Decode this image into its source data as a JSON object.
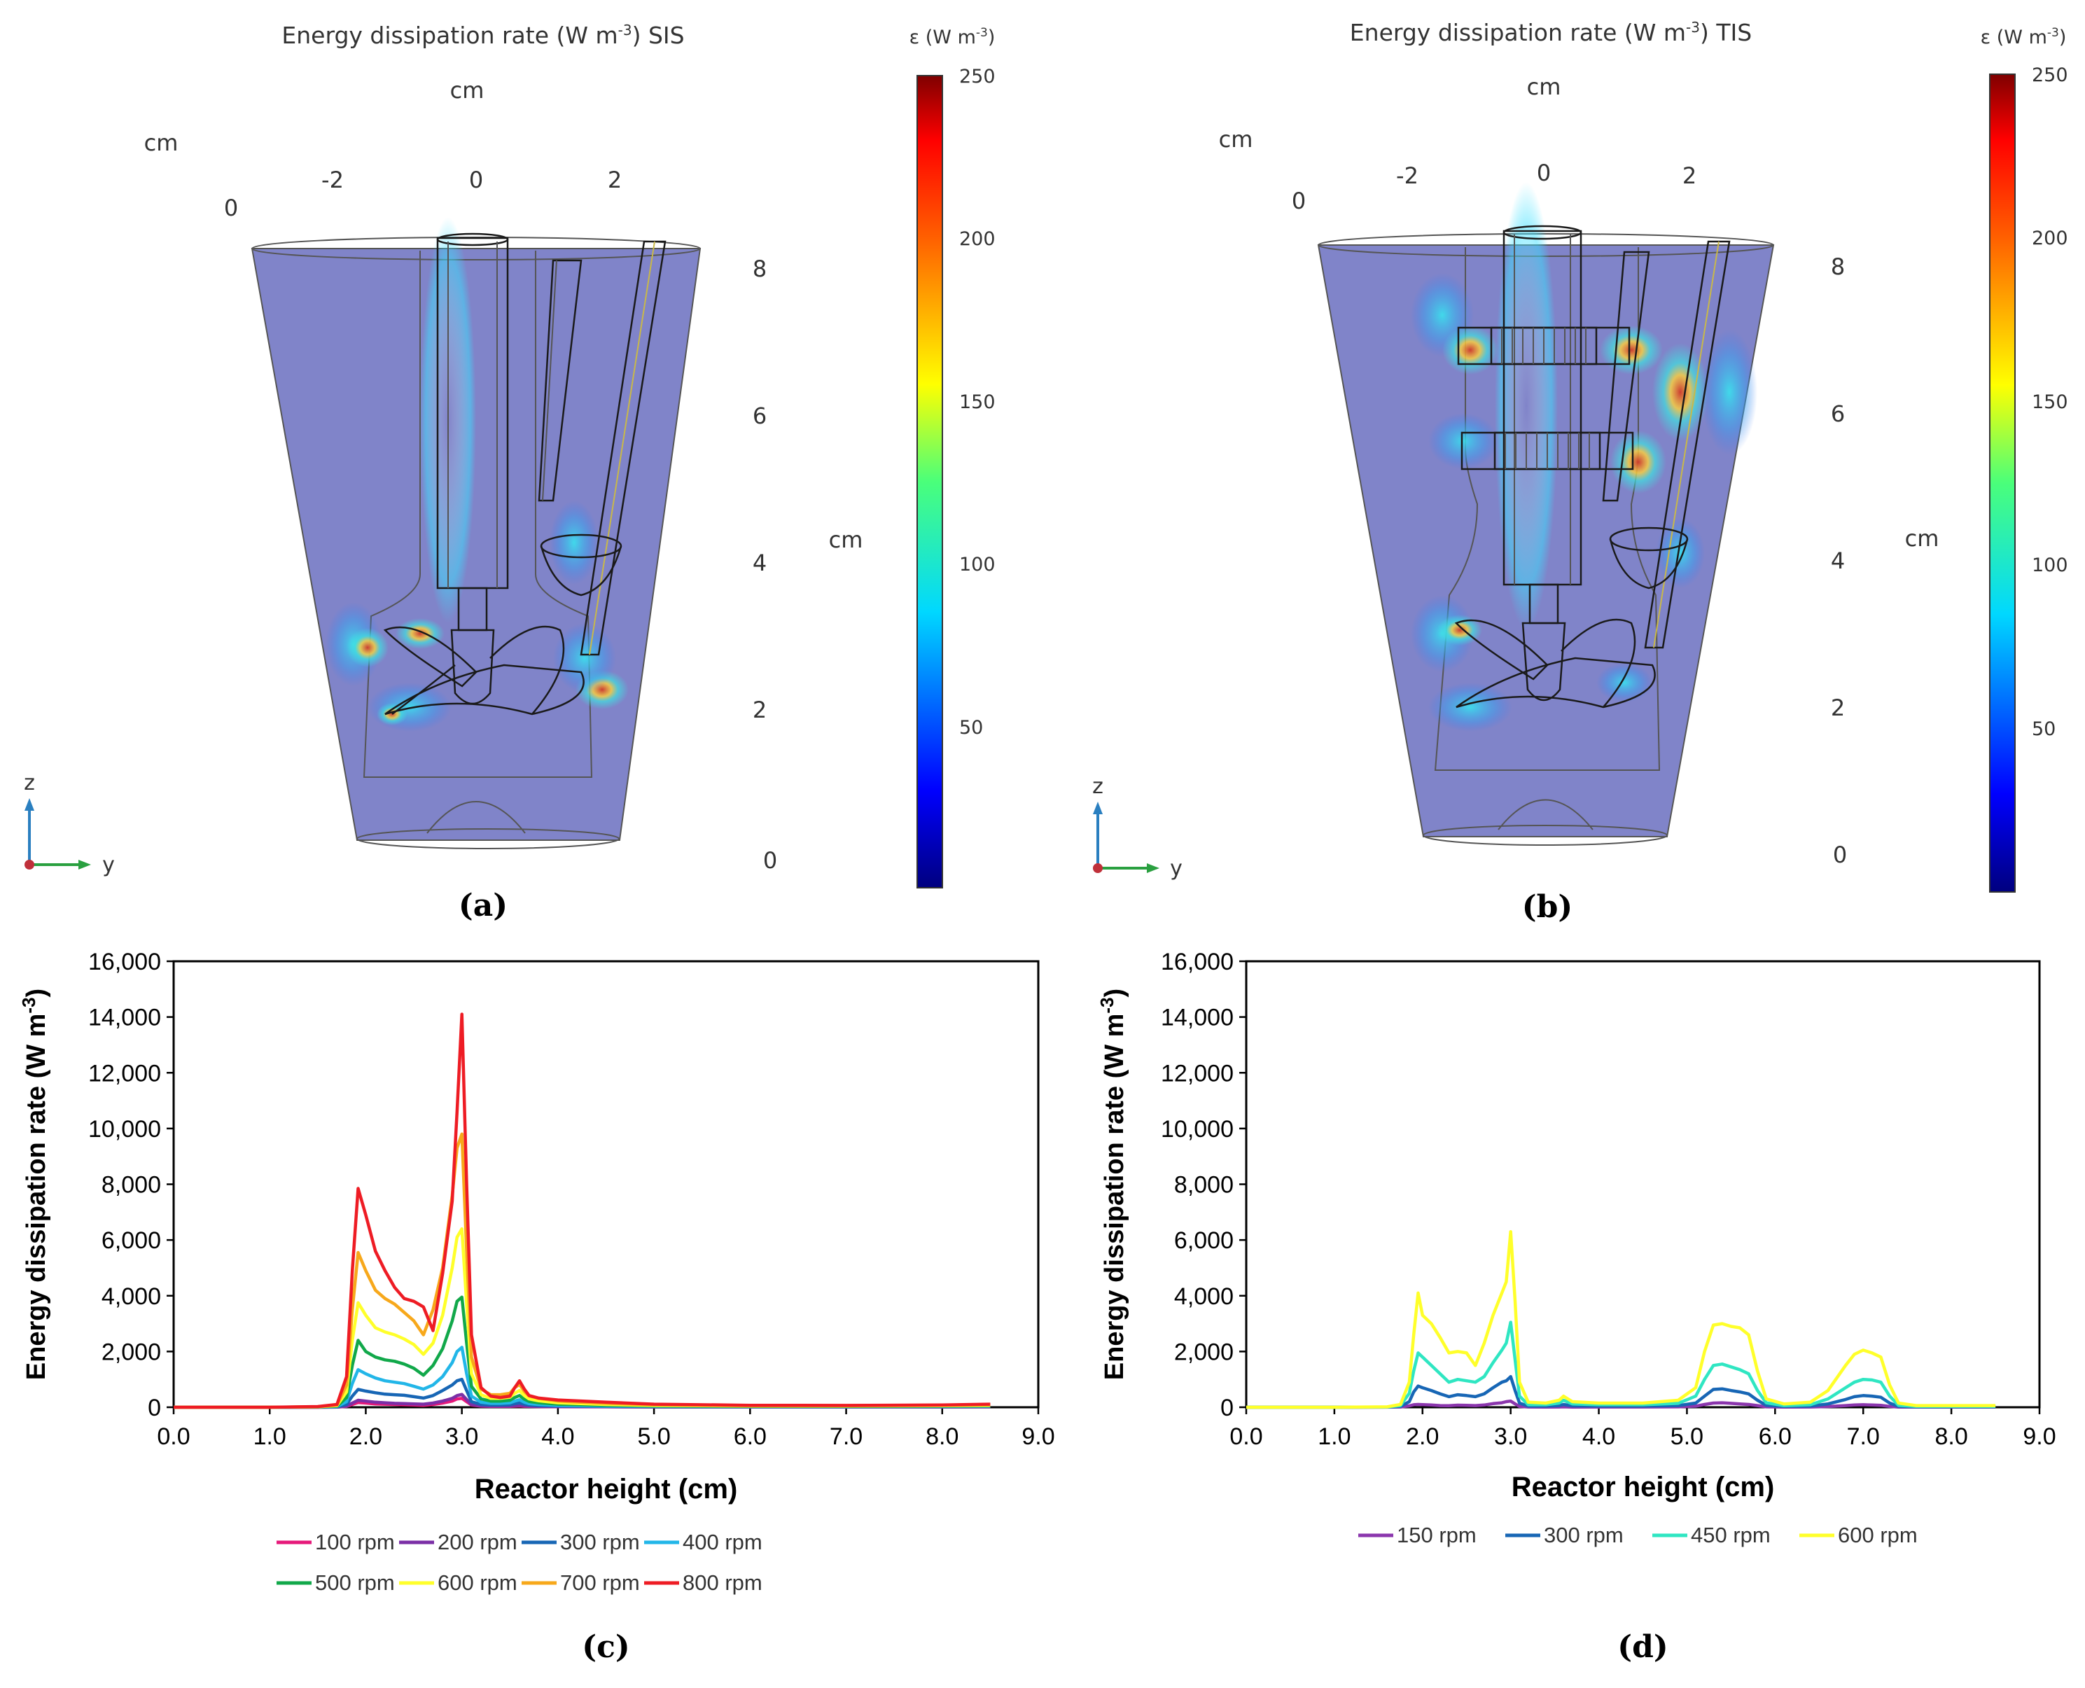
{
  "panel_a": {
    "title": "Energy dissipation rate (W m",
    "title_sup": "-3",
    "title_suffix": ") SIS",
    "colorbar_label": "ε (W m",
    "colorbar_sup": "-3",
    "colorbar_close": ")",
    "colorbar_ticks": [
      "250",
      "200",
      "150",
      "100",
      "50"
    ],
    "unit_top": "cm",
    "unit_left": "cm",
    "unit_right": "cm",
    "y_ticks": [
      "-2",
      "0",
      "2"
    ],
    "x_tick_zero": "0",
    "z_ticks": [
      "8",
      "6",
      "4",
      "2",
      "0"
    ],
    "axis_z": "z",
    "axis_y": "y",
    "panel_label": "(a)"
  },
  "panel_b": {
    "title": "Energy dissipation rate (W m",
    "title_sup": "-3",
    "title_suffix": ") TIS",
    "colorbar_label": "ε (W m",
    "colorbar_sup": "-3",
    "colorbar_close": ")",
    "colorbar_ticks": [
      "250",
      "200",
      "150",
      "100",
      "50"
    ],
    "unit_top": "cm",
    "unit_left": "cm",
    "unit_right": "cm",
    "y_ticks": [
      "-2",
      "0",
      "2"
    ],
    "x_tick_zero": "0",
    "z_ticks": [
      "8",
      "6",
      "4",
      "2",
      "0"
    ],
    "axis_z": "z",
    "axis_y": "y",
    "panel_label": "(b)"
  },
  "colors": {
    "c_100": "#e6197a",
    "c_200": "#7b2fa6",
    "c_300": "#1766b5",
    "c_400": "#22b6e8",
    "c_500": "#11a84a",
    "c_600": "#ffff2a",
    "c_700": "#f7a81b",
    "c_800": "#ee1c24",
    "d_150": "#8b36ad",
    "d_300": "#1766b5",
    "d_450": "#2fe6c2",
    "d_600": "#ffff2a",
    "wall_fill": "#6a6fc0"
  },
  "chart_data": [
    {
      "id": "c",
      "type": "line",
      "panel_label": "(c)",
      "xlabel": "Reactor height (cm)",
      "ylabel": "Energy dissipation rate (W m",
      "ylabel_sup": "-3",
      "ylabel_close": ")",
      "xlim": [
        0,
        9
      ],
      "ylim": [
        0,
        16000
      ],
      "xticks": [
        0,
        1,
        2,
        3,
        4,
        5,
        6,
        7,
        8,
        9
      ],
      "xtick_labels": [
        "0.0",
        "1.0",
        "2.0",
        "3.0",
        "4.0",
        "5.0",
        "6.0",
        "7.0",
        "8.0",
        "9.0"
      ],
      "yticks": [
        0,
        2000,
        4000,
        6000,
        8000,
        10000,
        12000,
        14000,
        16000
      ],
      "ytick_labels": [
        "0",
        "2,000",
        "4,000",
        "6,000",
        "8,000",
        "10,000",
        "12,000",
        "14,000",
        "16,000"
      ],
      "legend_position": "bottom",
      "x": [
        0.0,
        1.0,
        1.5,
        1.7,
        1.8,
        1.86,
        1.92,
        2.0,
        2.1,
        2.2,
        2.3,
        2.4,
        2.5,
        2.6,
        2.7,
        2.8,
        2.9,
        2.95,
        3.0,
        3.05,
        3.1,
        3.2,
        3.3,
        3.4,
        3.5,
        3.55,
        3.6,
        3.65,
        3.7,
        3.8,
        4.0,
        4.5,
        5.0,
        6.0,
        7.0,
        8.0,
        8.5
      ],
      "series": [
        {
          "name": "100 rpm",
          "color": "#e6197a",
          "values": [
            0,
            0,
            0,
            5,
            30,
            100,
            170,
            150,
            120,
            110,
            100,
            90,
            80,
            70,
            100,
            150,
            220,
            300,
            320,
            200,
            80,
            40,
            30,
            30,
            30,
            40,
            50,
            35,
            30,
            25,
            20,
            15,
            10,
            8,
            8,
            10,
            12
          ]
        },
        {
          "name": "200 rpm",
          "color": "#7b2fa6",
          "values": [
            0,
            0,
            0,
            6,
            40,
            150,
            250,
            220,
            180,
            160,
            140,
            130,
            120,
            110,
            150,
            220,
            320,
            420,
            460,
            280,
            100,
            50,
            40,
            40,
            40,
            55,
            70,
            50,
            40,
            30,
            25,
            18,
            12,
            10,
            10,
            12,
            15
          ]
        },
        {
          "name": "300 rpm",
          "color": "#1766b5",
          "values": [
            0,
            0,
            5,
            15,
            100,
            400,
            640,
            580,
            520,
            470,
            450,
            430,
            380,
            330,
            420,
            600,
            800,
            950,
            1000,
            600,
            200,
            100,
            80,
            80,
            90,
            130,
            160,
            110,
            80,
            60,
            45,
            30,
            20,
            15,
            15,
            20,
            25
          ]
        },
        {
          "name": "400 rpm",
          "color": "#22b6e8",
          "values": [
            0,
            0,
            8,
            25,
            200,
            850,
            1350,
            1200,
            1050,
            950,
            900,
            850,
            750,
            650,
            800,
            1100,
            1600,
            2000,
            2150,
            1200,
            400,
            180,
            140,
            140,
            160,
            220,
            270,
            180,
            130,
            100,
            70,
            45,
            30,
            22,
            22,
            28,
            35
          ]
        },
        {
          "name": "500 rpm",
          "color": "#11a84a",
          "values": [
            0,
            0,
            10,
            40,
            350,
            1500,
            2400,
            2000,
            1800,
            1700,
            1650,
            1550,
            1400,
            1150,
            1500,
            2100,
            3100,
            3800,
            3950,
            2300,
            750,
            300,
            220,
            220,
            250,
            350,
            420,
            290,
            210,
            160,
            110,
            70,
            45,
            32,
            32,
            40,
            50
          ]
        },
        {
          "name": "600 rpm",
          "color": "#ffff2a",
          "values": [
            0,
            0,
            15,
            60,
            550,
            2400,
            3750,
            3300,
            2850,
            2700,
            2600,
            2450,
            2250,
            1900,
            2300,
            3300,
            5000,
            6100,
            6400,
            3700,
            1200,
            450,
            320,
            320,
            360,
            500,
            600,
            420,
            300,
            230,
            160,
            100,
            65,
            45,
            45,
            55,
            70
          ]
        },
        {
          "name": "700 rpm",
          "color": "#f7a81b",
          "values": [
            0,
            0,
            20,
            80,
            800,
            3500,
            5550,
            4900,
            4200,
            3900,
            3700,
            3400,
            3100,
            2600,
            3500,
            5000,
            7600,
            9300,
            9800,
            5600,
            1800,
            650,
            450,
            450,
            500,
            700,
            820,
            570,
            410,
            320,
            220,
            140,
            90,
            60,
            60,
            75,
            95
          ]
        },
        {
          "name": "800 rpm",
          "color": "#ee1c24",
          "values": [
            0,
            0,
            25,
            100,
            1100,
            4900,
            7850,
            6900,
            5600,
            4900,
            4300,
            3900,
            3800,
            3600,
            2750,
            4800,
            7400,
            10600,
            14100,
            8000,
            2600,
            700,
            400,
            350,
            400,
            700,
            950,
            650,
            420,
            330,
            260,
            180,
            110,
            70,
            65,
            80,
            110
          ]
        }
      ]
    },
    {
      "id": "d",
      "type": "line",
      "panel_label": "(d)",
      "xlabel": "Reactor height (cm)",
      "ylabel": "Energy dissipation rate (W m",
      "ylabel_sup": "-3",
      "ylabel_close": ")",
      "xlim": [
        0,
        9
      ],
      "ylim": [
        0,
        16000
      ],
      "xticks": [
        0,
        1,
        2,
        3,
        4,
        5,
        6,
        7,
        8,
        9
      ],
      "xtick_labels": [
        "0.0",
        "1.0",
        "2.0",
        "3.0",
        "4.0",
        "5.0",
        "6.0",
        "7.0",
        "8.0",
        "9.0"
      ],
      "yticks": [
        0,
        2000,
        4000,
        6000,
        8000,
        10000,
        12000,
        14000,
        16000
      ],
      "ytick_labels": [
        "0",
        "2,000",
        "4,000",
        "6,000",
        "8,000",
        "10,000",
        "12,000",
        "14,000",
        "16,000"
      ],
      "legend_position": "bottom",
      "x": [
        0.0,
        1.0,
        1.6,
        1.75,
        1.85,
        1.9,
        1.95,
        2.0,
        2.1,
        2.2,
        2.3,
        2.4,
        2.5,
        2.6,
        2.7,
        2.8,
        2.9,
        2.95,
        3.0,
        3.05,
        3.1,
        3.2,
        3.4,
        3.55,
        3.6,
        3.7,
        4.0,
        4.5,
        4.9,
        5.1,
        5.2,
        5.3,
        5.4,
        5.5,
        5.6,
        5.7,
        5.8,
        5.9,
        6.1,
        6.4,
        6.6,
        6.8,
        6.9,
        7.0,
        7.1,
        7.2,
        7.3,
        7.4,
        7.6,
        8.0,
        8.5
      ],
      "series": [
        {
          "name": "150 rpm",
          "color": "#8b36ad",
          "values": [
            0,
            0,
            2,
            10,
            50,
            90,
            100,
            95,
            80,
            60,
            55,
            75,
            70,
            60,
            80,
            130,
            160,
            200,
            220,
            120,
            30,
            10,
            8,
            10,
            15,
            8,
            10,
            10,
            15,
            40,
            100,
            150,
            160,
            140,
            120,
            100,
            60,
            15,
            8,
            10,
            25,
            60,
            80,
            90,
            80,
            70,
            30,
            8,
            5,
            5,
            5
          ]
        },
        {
          "name": "300 rpm",
          "color": "#1766b5",
          "values": [
            0,
            0,
            5,
            30,
            200,
            550,
            760,
            700,
            600,
            480,
            380,
            450,
            420,
            380,
            480,
            700,
            900,
            950,
            1100,
            600,
            150,
            40,
            40,
            60,
            100,
            50,
            40,
            40,
            60,
            150,
            400,
            640,
            660,
            600,
            550,
            480,
            250,
            70,
            30,
            40,
            120,
            280,
            380,
            420,
            400,
            360,
            150,
            30,
            15,
            15,
            15
          ]
        },
        {
          "name": "450 rpm",
          "color": "#2fe6c2",
          "values": [
            0,
            0,
            10,
            60,
            500,
            1300,
            1950,
            1800,
            1500,
            1200,
            900,
            1000,
            950,
            900,
            1100,
            1600,
            2050,
            2300,
            3050,
            1700,
            400,
            90,
            90,
            150,
            250,
            120,
            90,
            90,
            140,
            400,
            1000,
            1500,
            1550,
            1450,
            1350,
            1200,
            600,
            160,
            60,
            90,
            300,
            700,
            900,
            1000,
            980,
            900,
            400,
            70,
            30,
            30,
            30
          ]
        },
        {
          "name": "600 rpm",
          "color": "#ffff2a",
          "values": [
            0,
            0,
            15,
            100,
            900,
            2600,
            4100,
            3300,
            3000,
            2500,
            1950,
            2000,
            1950,
            1500,
            2300,
            3300,
            4100,
            4500,
            6300,
            3800,
            900,
            180,
            150,
            250,
            400,
            200,
            150,
            150,
            250,
            700,
            2000,
            2950,
            3000,
            2900,
            2850,
            2600,
            1300,
            300,
            120,
            180,
            600,
            1500,
            1900,
            2050,
            1950,
            1800,
            800,
            150,
            60,
            60,
            60
          ]
        }
      ]
    }
  ]
}
